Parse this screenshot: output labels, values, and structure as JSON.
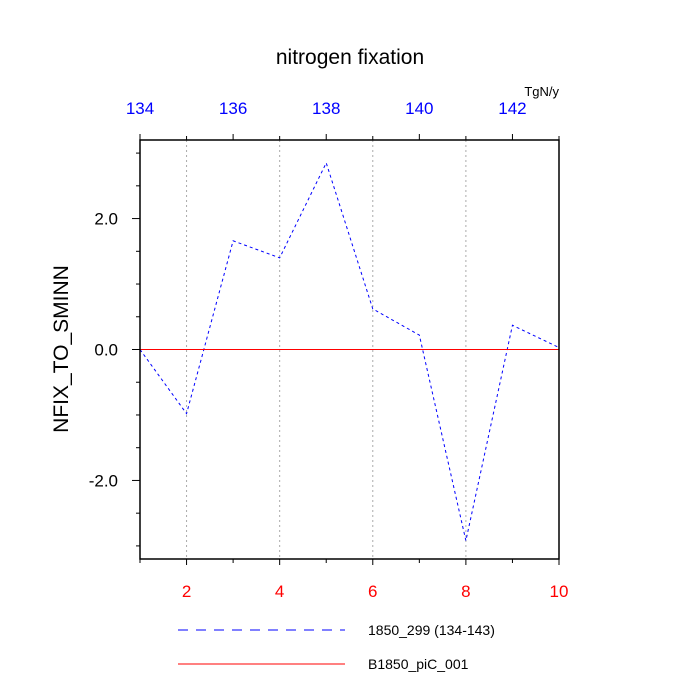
{
  "chart_data": {
    "type": "line",
    "title": "nitrogen fixation",
    "units": "TgN/y",
    "ylabel": "NFIX_TO_SMINN",
    "xlabel": "",
    "x": [
      1,
      2,
      3,
      4,
      5,
      6,
      7,
      8,
      9,
      10
    ],
    "xlim": [
      1,
      10
    ],
    "xticks": [
      "2",
      "4",
      "6",
      "8",
      "10"
    ],
    "top_axis": {
      "lim": [
        134,
        143
      ],
      "ticks": [
        "134",
        "136",
        "138",
        "140",
        "142"
      ]
    },
    "ylim": [
      -3.2,
      3.2
    ],
    "yticks": [
      "2.0",
      "0.0",
      "-2.0"
    ],
    "grid": "vertical-dotted",
    "legend_position": "bottom",
    "series": [
      {
        "name": "1850_299 (134-143)",
        "values": [
          0.0,
          -0.98,
          1.66,
          1.4,
          2.85,
          0.62,
          0.22,
          -2.92,
          0.37,
          0.03
        ],
        "color": "#0000ff",
        "style": "dashed"
      },
      {
        "name": "B1850_piC_001",
        "values": [
          0,
          0,
          0,
          0,
          0,
          0,
          0,
          0,
          0,
          0
        ],
        "color": "#ff0000",
        "style": "solid"
      }
    ]
  }
}
